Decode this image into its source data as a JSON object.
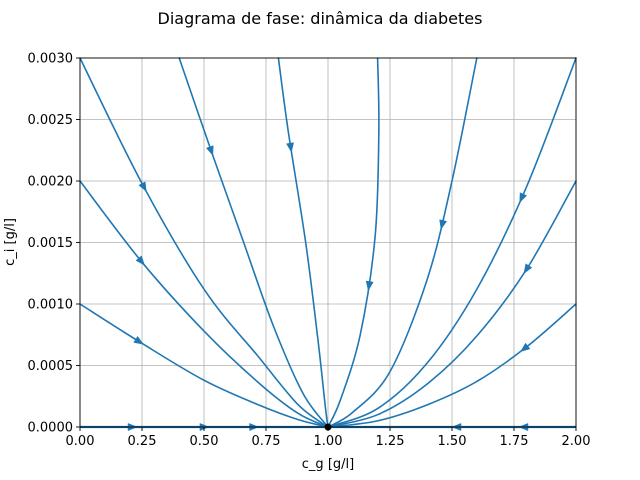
{
  "chart_data": {
    "type": "streamplot",
    "title": "Diagrama de fase: dinâmica da diabetes",
    "xlabel": "c_g [g/l]",
    "ylabel": "c_i [g/l]",
    "xlim": [
      0.0,
      2.0
    ],
    "ylim": [
      0.0,
      0.003
    ],
    "x_ticks": [
      "0.00",
      "0.25",
      "0.50",
      "0.75",
      "1.00",
      "1.25",
      "1.50",
      "1.75",
      "2.00"
    ],
    "y_ticks": [
      "0.0000",
      "0.0005",
      "0.0010",
      "0.0015",
      "0.0020",
      "0.0025",
      "0.0030"
    ],
    "grid": true,
    "equilibrium": {
      "x": 1.0,
      "y": 0.0
    },
    "streamlines": [
      {
        "points": [
          [
            0.0,
            0.001
          ],
          [
            0.25,
            0.00068
          ],
          [
            0.5,
            0.00038
          ],
          [
            0.72,
            0.00018
          ],
          [
            0.88,
            6e-05
          ],
          [
            1.0,
            0.0
          ]
        ],
        "arrow_x": 0.24
      },
      {
        "points": [
          [
            0.0,
            0.002
          ],
          [
            0.25,
            0.00134
          ],
          [
            0.5,
            0.00078
          ],
          [
            0.72,
            0.00036
          ],
          [
            0.88,
            0.00011
          ],
          [
            1.0,
            0.0
          ]
        ],
        "arrow_x": 0.25
      },
      {
        "points": [
          [
            0.0,
            0.003
          ],
          [
            0.25,
            0.00198
          ],
          [
            0.5,
            0.00112
          ],
          [
            0.72,
            0.00057
          ],
          [
            0.88,
            0.00018
          ],
          [
            1.0,
            0.0
          ]
        ],
        "arrow_x": 0.26
      },
      {
        "points": [
          [
            0.4,
            0.003
          ],
          [
            0.53,
            0.00224
          ],
          [
            0.66,
            0.0015
          ],
          [
            0.78,
            0.00082
          ],
          [
            0.9,
            0.00027
          ],
          [
            1.0,
            0.0
          ]
        ],
        "arrow_x": 0.53
      },
      {
        "points": [
          [
            0.8,
            0.003
          ],
          [
            0.84,
            0.0024
          ],
          [
            0.91,
            0.0015
          ],
          [
            0.96,
            0.0007
          ],
          [
            0.99,
            0.00015
          ],
          [
            1.0,
            0.0
          ]
        ],
        "arrow_x": 0.85
      },
      {
        "points": [
          [
            1.2,
            0.003
          ],
          [
            1.205,
            0.0024
          ],
          [
            1.19,
            0.00155
          ],
          [
            1.13,
            0.00075
          ],
          [
            1.05,
            0.00022
          ],
          [
            1.0,
            0.0
          ]
        ],
        "arrow_x": 1.165
      },
      {
        "points": [
          [
            1.6,
            0.003
          ],
          [
            1.5,
            0.002
          ],
          [
            1.4,
            0.0012
          ],
          [
            1.25,
            0.00045
          ],
          [
            1.1,
            0.00012
          ],
          [
            1.0,
            0.0
          ]
        ],
        "arrow_x": 1.46
      },
      {
        "points": [
          [
            2.0,
            0.003
          ],
          [
            1.8,
            0.00195
          ],
          [
            1.6,
            0.00112
          ],
          [
            1.4,
            0.00052
          ],
          [
            1.2,
            0.00015
          ],
          [
            1.0,
            0.0
          ]
        ],
        "arrow_x": 1.78
      },
      {
        "points": [
          [
            2.0,
            0.002
          ],
          [
            1.8,
            0.00128
          ],
          [
            1.6,
            0.00074
          ],
          [
            1.4,
            0.00035
          ],
          [
            1.2,
            0.0001
          ],
          [
            1.0,
            0.0
          ]
        ],
        "arrow_x": 1.8
      },
      {
        "points": [
          [
            2.0,
            0.001
          ],
          [
            1.8,
            0.00065
          ],
          [
            1.6,
            0.00037
          ],
          [
            1.4,
            0.00018
          ],
          [
            1.2,
            5e-05
          ],
          [
            1.0,
            0.0
          ]
        ],
        "arrow_x": 1.79
      }
    ],
    "axis_arrows": [
      0.23,
      0.52,
      0.72,
      1.5,
      1.77
    ]
  }
}
